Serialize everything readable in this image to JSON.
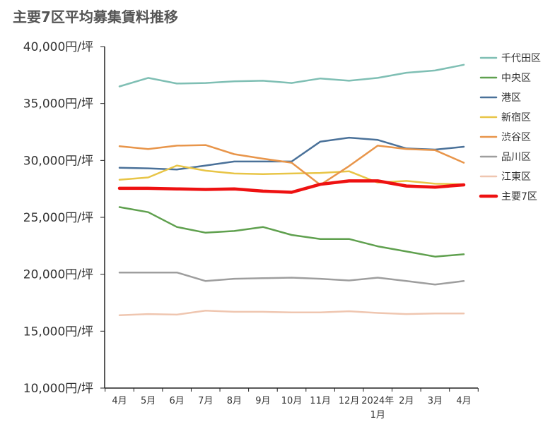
{
  "chart_data": {
    "type": "line",
    "title": "主要7区平均募集賃料推移",
    "xlabel": "",
    "ylabel": "",
    "categories": [
      "4月",
      "5月",
      "6月",
      "7月",
      "8月",
      "9月",
      "10月",
      "11月",
      "12月",
      "2024年|1月",
      "2月",
      "3月",
      "4月"
    ],
    "ylim": [
      10000,
      40000
    ],
    "yticks": [
      10000,
      15000,
      20000,
      25000,
      30000,
      35000,
      40000
    ],
    "ytick_labels": [
      "10,000円/坪",
      "15,000円/坪",
      "20,000円/坪",
      "25,000円/坪",
      "30,000円/坪",
      "35,000円/坪",
      "40,000円/坪"
    ],
    "grid": false,
    "legend_position": "right",
    "series": [
      {
        "name": "千代田区",
        "color": "#7fbfb4",
        "width": "normal",
        "values": [
          36500,
          37250,
          36750,
          36800,
          36950,
          37000,
          36800,
          37200,
          37000,
          37250,
          37700,
          37900,
          38400
        ]
      },
      {
        "name": "中央区",
        "color": "#5fa04e",
        "width": "normal",
        "values": [
          25900,
          25450,
          24150,
          23650,
          23800,
          24150,
          23450,
          23100,
          23100,
          22450,
          22000,
          21550,
          21750
        ]
      },
      {
        "name": "港区",
        "color": "#4a7199",
        "width": "normal",
        "values": [
          29350,
          29300,
          29200,
          29550,
          29900,
          29900,
          29900,
          31650,
          32000,
          31800,
          31050,
          30950,
          31200
        ]
      },
      {
        "name": "新宿区",
        "color": "#e8c547",
        "width": "normal",
        "values": [
          28300,
          28500,
          29550,
          29100,
          28850,
          28800,
          28850,
          28900,
          29050,
          28050,
          28200,
          27950,
          27900
        ]
      },
      {
        "name": "渋谷区",
        "color": "#e8954a",
        "width": "normal",
        "values": [
          31250,
          31000,
          31300,
          31350,
          30550,
          30150,
          29800,
          27850,
          29500,
          31300,
          31000,
          30900,
          29800
        ]
      },
      {
        "name": "品川区",
        "color": "#9e9e9e",
        "width": "normal",
        "values": [
          20150,
          20150,
          20150,
          19400,
          19600,
          19650,
          19700,
          19600,
          19450,
          19700,
          19400,
          19100,
          19400
        ]
      },
      {
        "name": "江東区",
        "color": "#efc6b0",
        "width": "normal",
        "values": [
          16400,
          16500,
          16450,
          16800,
          16700,
          16700,
          16650,
          16650,
          16750,
          16600,
          16500,
          16550,
          16550
        ]
      },
      {
        "name": "主要7区",
        "color": "#ee1111",
        "width": "bold",
        "values": [
          27550,
          27550,
          27500,
          27450,
          27500,
          27300,
          27200,
          27900,
          28200,
          28200,
          27750,
          27650,
          27850
        ]
      }
    ]
  }
}
